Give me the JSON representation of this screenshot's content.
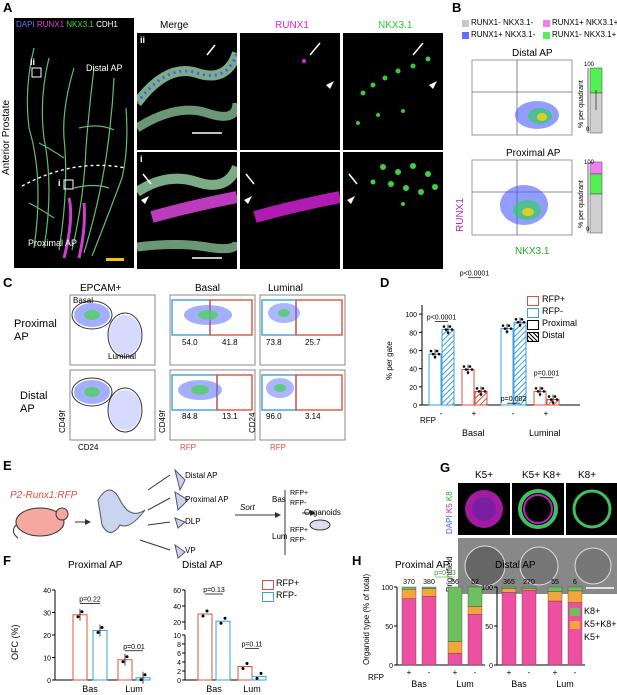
{
  "panelA": {
    "label": "A",
    "legend": {
      "dapi": "DAPI",
      "runx1": "RUNX1",
      "nkx": "NKX3.1",
      "cdh1": "CDH1"
    },
    "side_label": "Anterior Prostate",
    "distal": "Distal AP",
    "proximal": "Proximal AP",
    "inset_ii": "ii",
    "inset_i": "i",
    "columns": {
      "merge": "Merge",
      "runx1": "RUNX1",
      "nkx": "NKX3.1"
    },
    "colors": {
      "dapi": "#3b5bff",
      "runx1": "#e020e0",
      "nkx": "#2ecc2e",
      "cdh1": "#ffffff"
    }
  },
  "panelB": {
    "label": "B",
    "legend": [
      "RUNX1- NKX3.1-",
      "RUNX1+ NKX3.1+",
      "RUNX1+ NKX3.1-",
      "RUNX1- NKX3.1+"
    ],
    "legend_colors": [
      "#c8c8c8",
      "#f080f0",
      "#6a6aff",
      "#55ee55"
    ],
    "distal": "Distal AP",
    "proximal": "Proximal AP",
    "ylabel": "% per quadrant",
    "tick0": "0",
    "tick100": "100",
    "x_axis": "NKX3.1",
    "y_axis": "RUNX1"
  },
  "panelC": {
    "label": "C",
    "cols": [
      "EPCAM+",
      "Basal",
      "Luminal"
    ],
    "rows": [
      "Proximal AP",
      "Distal AP"
    ],
    "basal_gate": "Basal",
    "luminal_gate": "Luminal",
    "values": {
      "prox_basal": [
        "54.0",
        "41.8"
      ],
      "prox_lum": [
        "73.8",
        "25.7"
      ],
      "dist_basal": [
        "84.8",
        "13.1"
      ],
      "dist_lum": [
        "96.0",
        "3.14"
      ]
    },
    "axes": {
      "cd49f": "CD49f",
      "cd24": "CD24",
      "rfp": "RFP"
    }
  },
  "panelD": {
    "label": "D",
    "ylabel": "% per gate",
    "yticks": [
      "0",
      "20",
      "40",
      "60",
      "80",
      "100"
    ],
    "legend": [
      "RFP+",
      "RFP-",
      "Proximal",
      "Distal"
    ],
    "pvalues": [
      "p<0.0001",
      "p<0.0001",
      "p=0.002",
      "p=0.001"
    ],
    "rfp_label": "RFP",
    "signs": [
      "-",
      "+",
      "-",
      "+"
    ],
    "groups": [
      "Basal",
      "Luminal"
    ],
    "chart_data": {
      "type": "bar",
      "categories": [
        "Basal RFP- Proximal",
        "Basal RFP- Distal",
        "Basal RFP+ Proximal",
        "Basal RFP+ Distal",
        "Luminal RFP- Proximal",
        "Luminal RFP- Distal",
        "Luminal RFP+ Proximal",
        "Luminal RFP+ Distal"
      ],
      "values": [
        56,
        83,
        39,
        15,
        84,
        91,
        15,
        6
      ],
      "ylim": [
        0,
        110
      ]
    }
  },
  "panelE": {
    "label": "E",
    "mouse": "P2-Runx1:RFP",
    "lobes": [
      "Distal AP",
      "Proximal AP",
      "DLP",
      "VP"
    ],
    "sort": "Sort",
    "bas": "Bas",
    "lum": "Lum",
    "rfp_plus": "RFP+",
    "rfp_minus": "RFP-",
    "organoids": "Organoids"
  },
  "panelG": {
    "label": "G",
    "cols": [
      "K5+",
      "K5+ K8+",
      "K8+"
    ],
    "row1": {
      "dapi": "DAPI",
      "k5": "K5",
      "k8": "K8"
    },
    "row2": "Brightfield"
  },
  "panelF": {
    "label": "F",
    "ylabel": "OFC (%)",
    "titles": [
      "Proximal AP",
      "Distal AP"
    ],
    "legend": [
      "RFP+",
      "RFP-"
    ],
    "pvalues": [
      "p=0.22",
      "p=0.01",
      "p=0.13",
      "p=0.11"
    ],
    "yticks_left": [
      "0",
      "10",
      "20",
      "30",
      "40"
    ],
    "yticks_right": [
      "0",
      "2",
      "4",
      "6",
      "8",
      "10",
      "20",
      "40",
      "60"
    ],
    "xgroups": [
      "Bas",
      "Lum"
    ],
    "chart_data": [
      {
        "type": "bar",
        "title": "Proximal AP",
        "categories": [
          "Bas",
          "Lum"
        ],
        "series": [
          {
            "name": "RFP+",
            "values": [
              29,
              9
            ]
          },
          {
            "name": "RFP-",
            "values": [
              22,
              1
            ]
          }
        ],
        "ylim": [
          0,
          40
        ]
      },
      {
        "type": "bar",
        "title": "Distal AP",
        "categories": [
          "Bas",
          "Lum"
        ],
        "series": [
          {
            "name": "RFP+",
            "values": [
              30,
              3
            ]
          },
          {
            "name": "RFP-",
            "values": [
              21,
              0.8
            ]
          }
        ]
      }
    ]
  },
  "panelH": {
    "label": "H",
    "ylabel": "Organoid type (% of total)",
    "titles": [
      "Proximal AP",
      "Distal AP"
    ],
    "legend": [
      "K8+",
      "K5+K8+",
      "K5+"
    ],
    "legend_colors": [
      "#6dbf5f",
      "#f3a43b",
      "#ef4fa0"
    ],
    "counts_left": [
      "370",
      "380",
      "56",
      "52"
    ],
    "counts_right": [
      "365",
      "270",
      "55",
      "6"
    ],
    "pvalue": "p=0.03",
    "yticks": [
      "0",
      "50",
      "100"
    ],
    "rfp_label": "RFP",
    "signs": [
      "+",
      "-",
      "+",
      "-"
    ],
    "xgroups": [
      "Bas",
      "Lum"
    ],
    "chart_data": [
      {
        "type": "bar",
        "title": "Proximal AP",
        "categories": [
          "Bas +",
          "Bas -",
          "Lum +",
          "Lum -"
        ],
        "series": [
          {
            "name": "K5+",
            "values": [
              85,
              88,
              15,
              65
            ]
          },
          {
            "name": "K5+K8+",
            "values": [
              12,
              10,
              15,
              10
            ]
          },
          {
            "name": "K8+",
            "values": [
              3,
              2,
              70,
              25
            ]
          }
        ]
      },
      {
        "type": "bar",
        "title": "Distal AP",
        "categories": [
          "Bas +",
          "Bas -",
          "Lum +",
          "Lum -"
        ],
        "series": [
          {
            "name": "K5+",
            "values": [
              93,
              96,
              82,
              80
            ]
          },
          {
            "name": "K5+K8+",
            "values": [
              5,
              2,
              12,
              15
            ]
          },
          {
            "name": "K8+",
            "values": [
              2,
              2,
              6,
              5
            ]
          }
        ]
      }
    ]
  }
}
